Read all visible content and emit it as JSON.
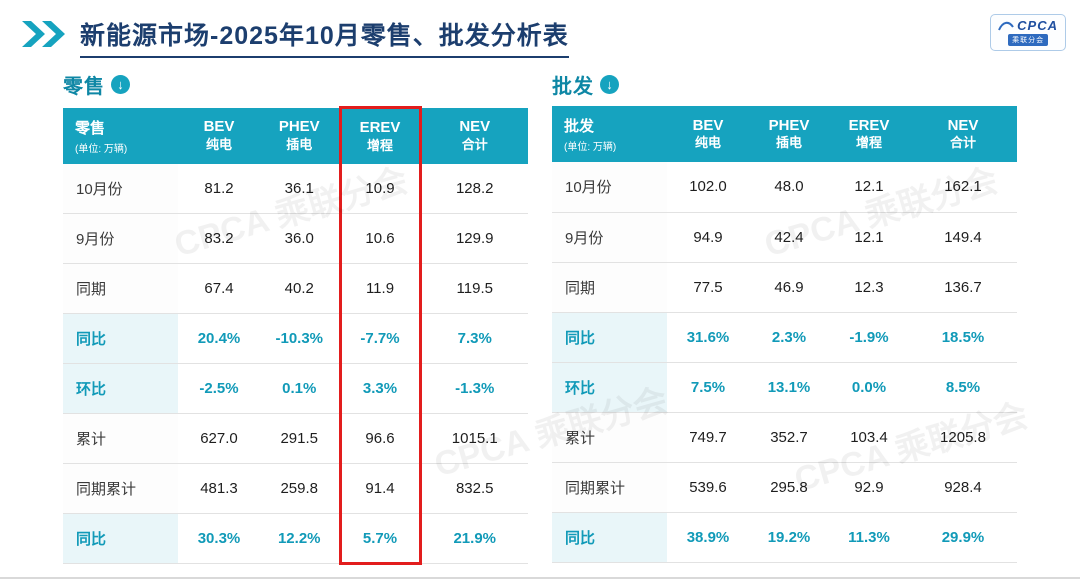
{
  "header": {
    "title": "新能源市场-2025年10月零售、批发分析表",
    "logo_text": "CPCA",
    "logo_sub": "乘联分会"
  },
  "watermark": "CPCA 乘联分会",
  "colors": {
    "teal": "#16a3bf",
    "navy": "#1c3e6e",
    "highlight_red": "#e21d1d"
  },
  "chart_data": [
    {
      "type": "table",
      "section_label": "零售",
      "corner_label": "零售",
      "corner_unit": "(单位: 万辆)",
      "highlight_column_index": 2,
      "columns": [
        {
          "name": "BEV",
          "sub": "纯电"
        },
        {
          "name": "PHEV",
          "sub": "插电"
        },
        {
          "name": "EREV",
          "sub": "增程"
        },
        {
          "name": "NEV",
          "sub": "合计"
        }
      ],
      "rows": [
        {
          "label": "10月份",
          "type": "normal",
          "values": [
            "81.2",
            "36.1",
            "10.9",
            "128.2"
          ]
        },
        {
          "label": "9月份",
          "type": "normal",
          "values": [
            "83.2",
            "36.0",
            "10.6",
            "129.9"
          ]
        },
        {
          "label": "同期",
          "type": "normal",
          "values": [
            "67.4",
            "40.2",
            "11.9",
            "119.5"
          ]
        },
        {
          "label": "同比",
          "type": "percent",
          "values": [
            "20.4%",
            "-10.3%",
            "-7.7%",
            "7.3%"
          ]
        },
        {
          "label": "环比",
          "type": "percent",
          "values": [
            "-2.5%",
            "0.1%",
            "3.3%",
            "-1.3%"
          ]
        },
        {
          "label": "累计",
          "type": "normal",
          "values": [
            "627.0",
            "291.5",
            "96.6",
            "1015.1"
          ]
        },
        {
          "label": "同期累计",
          "type": "normal",
          "values": [
            "481.3",
            "259.8",
            "91.4",
            "832.5"
          ]
        },
        {
          "label": "同比",
          "type": "percent",
          "values": [
            "30.3%",
            "12.2%",
            "5.7%",
            "21.9%"
          ]
        }
      ]
    },
    {
      "type": "table",
      "section_label": "批发",
      "corner_label": "批发",
      "corner_unit": "(单位: 万辆)",
      "highlight_column_index": null,
      "columns": [
        {
          "name": "BEV",
          "sub": "纯电"
        },
        {
          "name": "PHEV",
          "sub": "插电"
        },
        {
          "name": "EREV",
          "sub": "增程"
        },
        {
          "name": "NEV",
          "sub": "合计"
        }
      ],
      "rows": [
        {
          "label": "10月份",
          "type": "normal",
          "values": [
            "102.0",
            "48.0",
            "12.1",
            "162.1"
          ]
        },
        {
          "label": "9月份",
          "type": "normal",
          "values": [
            "94.9",
            "42.4",
            "12.1",
            "149.4"
          ]
        },
        {
          "label": "同期",
          "type": "normal",
          "values": [
            "77.5",
            "46.9",
            "12.3",
            "136.7"
          ]
        },
        {
          "label": "同比",
          "type": "percent",
          "values": [
            "31.6%",
            "2.3%",
            "-1.9%",
            "18.5%"
          ]
        },
        {
          "label": "环比",
          "type": "percent",
          "values": [
            "7.5%",
            "13.1%",
            "0.0%",
            "8.5%"
          ]
        },
        {
          "label": "累计",
          "type": "normal",
          "values": [
            "749.7",
            "352.7",
            "103.4",
            "1205.8"
          ]
        },
        {
          "label": "同期累计",
          "type": "normal",
          "values": [
            "539.6",
            "295.8",
            "92.9",
            "928.4"
          ]
        },
        {
          "label": "同比",
          "type": "percent",
          "values": [
            "38.9%",
            "19.2%",
            "11.3%",
            "29.9%"
          ]
        }
      ]
    }
  ]
}
